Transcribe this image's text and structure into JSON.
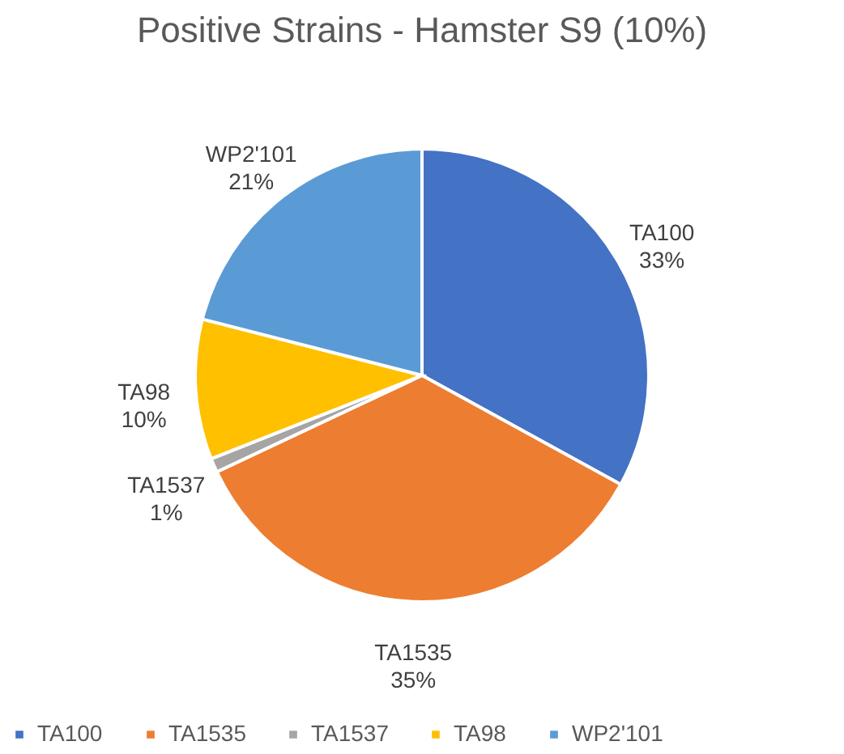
{
  "chart_data": {
    "type": "pie",
    "title": "Positive Strains - Hamster S9 (10%)",
    "categories": [
      "TA100",
      "TA1535",
      "TA1537",
      "TA98",
      "WP2'101"
    ],
    "values": [
      33,
      35,
      1,
      10,
      21
    ],
    "value_labels": [
      "33%",
      "35%",
      "1%",
      "10%",
      "21%"
    ],
    "colors": [
      "#4472c4",
      "#ed7d31",
      "#a5a5a5",
      "#ffc000",
      "#5b9bd5"
    ],
    "legend": "bottom"
  }
}
